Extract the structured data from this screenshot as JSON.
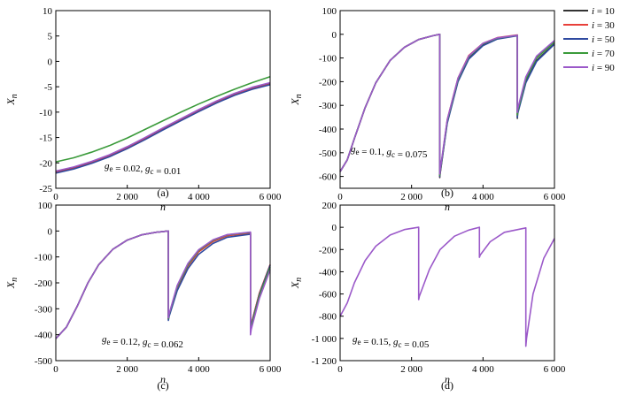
{
  "legend": [
    {
      "label": "i = 10",
      "color": "#333333"
    },
    {
      "label": "i = 30",
      "color": "#e8403a"
    },
    {
      "label": "i = 50",
      "color": "#2f4aa0"
    },
    {
      "label": "i = 70",
      "color": "#3a9a3a"
    },
    {
      "label": "i = 90",
      "color": "#9b59c9"
    }
  ],
  "chart_data": [
    {
      "panel": "(a)",
      "type": "line",
      "xlabel": "n",
      "ylabel": "X_n",
      "xlim": [
        0,
        6000
      ],
      "ylim": [
        -25,
        10
      ],
      "xticks": [
        0,
        2000,
        4000,
        6000
      ],
      "xtick_labels": [
        "0",
        "2 000",
        "4 000",
        "6 000"
      ],
      "yticks": [
        10,
        5,
        0,
        -5,
        -10,
        -15,
        -20,
        -25
      ],
      "ytick_labels": [
        "10",
        "5",
        "0",
        "-5",
        "-10",
        "-15",
        "-20",
        "-25"
      ],
      "annotation": "g_e = 0.02, g_c = 0.01",
      "series": [
        {
          "name": "i = 10",
          "x": [
            0,
            500,
            1000,
            1500,
            2000,
            2500,
            3000,
            3500,
            4000,
            4500,
            5000,
            5500,
            6000
          ],
          "y": [
            -21.7,
            -20.9,
            -19.8,
            -18.5,
            -16.9,
            -15.1,
            -13.2,
            -11.4,
            -9.6,
            -7.9,
            -6.4,
            -5.2,
            -4.3
          ]
        },
        {
          "name": "i = 30",
          "x": [
            0,
            500,
            1000,
            1500,
            2000,
            2500,
            3000,
            3500,
            4000,
            4500,
            5000,
            5500,
            6000
          ],
          "y": [
            -21.9,
            -21.1,
            -20.0,
            -18.7,
            -17.1,
            -15.3,
            -13.4,
            -11.6,
            -9.8,
            -8.1,
            -6.6,
            -5.4,
            -4.5
          ]
        },
        {
          "name": "i = 50",
          "x": [
            0,
            500,
            1000,
            1500,
            2000,
            2500,
            3000,
            3500,
            4000,
            4500,
            5000,
            5500,
            6000
          ],
          "y": [
            -22.0,
            -21.2,
            -20.1,
            -18.8,
            -17.2,
            -15.4,
            -13.5,
            -11.7,
            -9.9,
            -8.2,
            -6.7,
            -5.5,
            -4.6
          ]
        },
        {
          "name": "i = 70",
          "x": [
            0,
            500,
            1000,
            1500,
            2000,
            2500,
            3000,
            3500,
            4000,
            4500,
            5000,
            5500,
            6000
          ],
          "y": [
            -19.8,
            -19.0,
            -17.9,
            -16.6,
            -15.1,
            -13.4,
            -11.7,
            -10.0,
            -8.4,
            -6.9,
            -5.5,
            -4.2,
            -3.0
          ]
        },
        {
          "name": "i = 90",
          "x": [
            0,
            500,
            1000,
            1500,
            2000,
            2500,
            3000,
            3500,
            4000,
            4500,
            5000,
            5500,
            6000
          ],
          "y": [
            -21.6,
            -20.8,
            -19.7,
            -18.4,
            -16.8,
            -15.0,
            -13.1,
            -11.3,
            -9.5,
            -7.8,
            -6.3,
            -5.1,
            -4.2
          ]
        }
      ]
    },
    {
      "panel": "(b)",
      "type": "line",
      "xlabel": "n",
      "ylabel": "X_n",
      "xlim": [
        0,
        6000
      ],
      "ylim": [
        -650,
        100
      ],
      "xticks": [
        0,
        2000,
        4000,
        6000
      ],
      "xtick_labels": [
        "0",
        "2 000",
        "4 000",
        "6 000"
      ],
      "yticks": [
        100,
        0,
        -100,
        -200,
        -300,
        -400,
        -500,
        -600
      ],
      "ytick_labels": [
        "100",
        "0",
        "-100",
        "-200",
        "-300",
        "-400",
        "-500",
        "-600"
      ],
      "annotation": "g_e = 0.1, g_c = 0.075",
      "series": [
        {
          "name": "i = 10",
          "x": [
            0,
            200,
            400,
            700,
            1000,
            1400,
            1800,
            2200,
            2600,
            2790,
            2790,
            2800,
            3000,
            3300,
            3600,
            4000,
            4400,
            4960,
            4960,
            4970,
            5200,
            5500,
            6000
          ],
          "y": [
            -580,
            -530,
            -440,
            -310,
            -205,
            -110,
            -55,
            -22,
            -6,
            0,
            -605,
            -590,
            -370,
            -195,
            -100,
            -45,
            -18,
            -5,
            -355,
            -330,
            -200,
            -110,
            -40
          ]
        },
        {
          "name": "i = 30",
          "x": [
            0,
            200,
            400,
            700,
            1000,
            1400,
            1800,
            2200,
            2600,
            2790,
            2790,
            2800,
            3000,
            3300,
            3600,
            4000,
            4400,
            4960,
            4960,
            4970,
            5200,
            5500,
            6000
          ],
          "y": [
            -580,
            -530,
            -440,
            -310,
            -205,
            -110,
            -55,
            -22,
            -6,
            0,
            -600,
            -585,
            -360,
            -185,
            -90,
            -38,
            -14,
            -3,
            -345,
            -320,
            -185,
            -95,
            -28
          ]
        },
        {
          "name": "i = 50",
          "x": [
            0,
            200,
            400,
            700,
            1000,
            1400,
            1800,
            2200,
            2600,
            2790,
            2790,
            2800,
            3000,
            3300,
            3600,
            4000,
            4400,
            4960,
            4960,
            4970,
            5200,
            5500,
            6000
          ],
          "y": [
            -580,
            -530,
            -440,
            -310,
            -205,
            -110,
            -55,
            -22,
            -6,
            0,
            -600,
            -585,
            -375,
            -200,
            -105,
            -48,
            -20,
            -6,
            -350,
            -335,
            -205,
            -115,
            -42
          ]
        },
        {
          "name": "i = 70",
          "x": [
            0,
            200,
            400,
            700,
            1000,
            1400,
            1800,
            2200,
            2600,
            2790,
            2790,
            2800,
            3000,
            3300,
            3600,
            4000,
            4400,
            4960,
            4960,
            4970,
            5200,
            5500,
            6000
          ],
          "y": [
            -580,
            -530,
            -440,
            -310,
            -205,
            -110,
            -55,
            -22,
            -6,
            0,
            -595,
            -580,
            -365,
            -190,
            -95,
            -40,
            -16,
            -4,
            -340,
            -325,
            -190,
            -100,
            -32
          ]
        },
        {
          "name": "i = 90",
          "x": [
            0,
            200,
            400,
            700,
            1000,
            1400,
            1800,
            2200,
            2600,
            2790,
            2790,
            2800,
            3000,
            3300,
            3600,
            4000,
            4400,
            4960,
            4960,
            4970,
            5200,
            5500,
            6000
          ],
          "y": [
            -580,
            -530,
            -440,
            -310,
            -205,
            -110,
            -55,
            -22,
            -6,
            0,
            -590,
            -575,
            -360,
            -185,
            -92,
            -38,
            -15,
            -4,
            -330,
            -315,
            -180,
            -92,
            -26
          ]
        }
      ]
    },
    {
      "panel": "(c)",
      "type": "line",
      "xlabel": "n",
      "ylabel": "X_n",
      "xlim": [
        0,
        6000
      ],
      "ylim": [
        -500,
        100
      ],
      "xticks": [
        0,
        2000,
        4000,
        6000
      ],
      "xtick_labels": [
        "0",
        "2 000",
        "4 000",
        "6 000"
      ],
      "yticks": [
        100,
        0,
        -100,
        -200,
        -300,
        -400,
        -500
      ],
      "ytick_labels": [
        "100",
        "0",
        "-100",
        "-200",
        "-300",
        "-400",
        "-500"
      ],
      "annotation": "g_e = 0.12, g_c = 0.062",
      "series": [
        {
          "name": "i = 10",
          "x": [
            0,
            300,
            600,
            900,
            1200,
            1600,
            2000,
            2400,
            2800,
            3150,
            3150,
            3170,
            3400,
            3700,
            4000,
            4400,
            4800,
            5450,
            5450,
            5470,
            5700,
            6000
          ],
          "y": [
            -415,
            -370,
            -290,
            -200,
            -130,
            -70,
            -35,
            -15,
            -5,
            0,
            -340,
            -325,
            -220,
            -135,
            -80,
            -40,
            -18,
            -8,
            -380,
            -360,
            -240,
            -130
          ]
        },
        {
          "name": "i = 30",
          "x": [
            0,
            300,
            600,
            900,
            1200,
            1600,
            2000,
            2400,
            2800,
            3150,
            3150,
            3170,
            3400,
            3700,
            4000,
            4400,
            4800,
            5450,
            5450,
            5470,
            5700,
            6000
          ],
          "y": [
            -415,
            -370,
            -290,
            -200,
            -130,
            -70,
            -35,
            -15,
            -5,
            0,
            -340,
            -325,
            -220,
            -135,
            -80,
            -40,
            -18,
            -8,
            -380,
            -360,
            -240,
            -130
          ]
        },
        {
          "name": "i = 50",
          "x": [
            0,
            300,
            600,
            900,
            1200,
            1600,
            2000,
            2400,
            2800,
            3150,
            3150,
            3170,
            3400,
            3700,
            4000,
            4400,
            4800,
            5450,
            5450,
            5470,
            5700,
            6000
          ],
          "y": [
            -415,
            -370,
            -290,
            -200,
            -130,
            -70,
            -35,
            -15,
            -5,
            0,
            -345,
            -330,
            -230,
            -145,
            -90,
            -48,
            -24,
            -12,
            -385,
            -365,
            -245,
            -133
          ]
        },
        {
          "name": "i = 70",
          "x": [
            0,
            300,
            600,
            900,
            1200,
            1600,
            2000,
            2400,
            2800,
            3150,
            3150,
            3170,
            3400,
            3700,
            4000,
            4400,
            4800,
            5450,
            5450,
            5470,
            5700,
            6000
          ],
          "y": [
            -415,
            -370,
            -290,
            -200,
            -130,
            -70,
            -35,
            -15,
            -5,
            0,
            -338,
            -322,
            -215,
            -130,
            -75,
            -36,
            -15,
            -5,
            -390,
            -370,
            -250,
            -140
          ]
        },
        {
          "name": "i = 90",
          "x": [
            0,
            300,
            600,
            900,
            1200,
            1600,
            2000,
            2400,
            2800,
            3150,
            3150,
            3170,
            3400,
            3700,
            4000,
            4400,
            4800,
            5450,
            5450,
            5470,
            5700,
            6000
          ],
          "y": [
            -415,
            -370,
            -290,
            -200,
            -130,
            -70,
            -35,
            -15,
            -5,
            0,
            -335,
            -320,
            -210,
            -125,
            -72,
            -34,
            -14,
            -4,
            -400,
            -380,
            -260,
            -150
          ]
        }
      ]
    },
    {
      "panel": "(d)",
      "type": "line",
      "xlabel": "n",
      "ylabel": "X_n",
      "xlim": [
        0,
        6000
      ],
      "ylim": [
        -1200,
        200
      ],
      "xticks": [
        0,
        2000,
        4000,
        6000
      ],
      "xtick_labels": [
        "0",
        "2 000",
        "4 000",
        "6 000"
      ],
      "yticks": [
        200,
        0,
        -200,
        -400,
        -600,
        -800,
        -1000,
        -1200
      ],
      "ytick_labels": [
        "200",
        "0",
        "-200",
        "-400",
        "-600",
        "-800",
        "-1 000",
        "-1 200"
      ],
      "annotation": "g_e = 0.15, g_c = 0.05",
      "series": [
        {
          "name": "i = 90",
          "x": [
            0,
            200,
            400,
            700,
            1000,
            1400,
            1800,
            2200,
            2200,
            2220,
            2500,
            2800,
            3200,
            3600,
            3900,
            3900,
            3920,
            4200,
            4600,
            5200,
            5200,
            5220,
            5400,
            5700,
            6000
          ],
          "y": [
            -800,
            -680,
            -500,
            -300,
            -170,
            -70,
            -20,
            0,
            -650,
            -620,
            -380,
            -200,
            -80,
            -25,
            0,
            -270,
            -250,
            -130,
            -45,
            -5,
            -1070,
            -1000,
            -600,
            -280,
            -100
          ]
        }
      ]
    }
  ]
}
